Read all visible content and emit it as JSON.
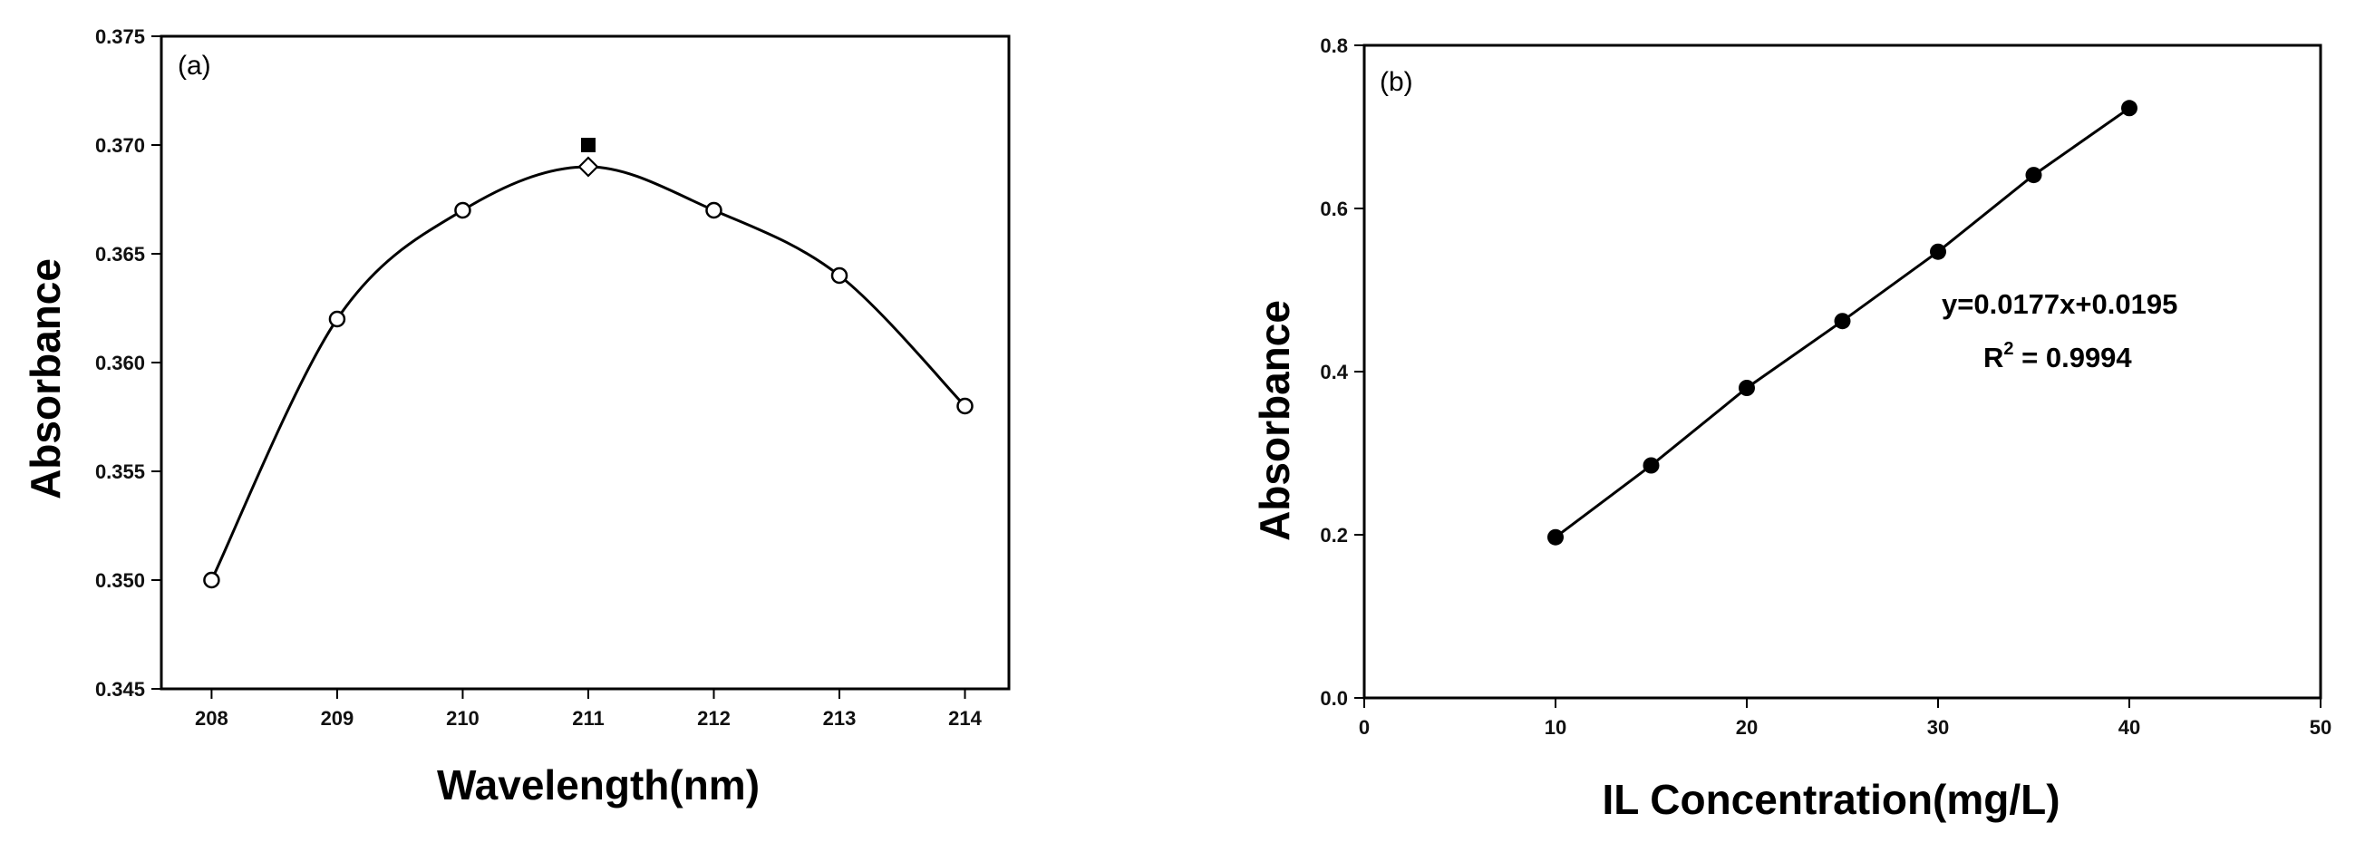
{
  "chart_data": [
    {
      "panel": "(a)",
      "type": "scatter",
      "xlabel": "Wavelength(nm)",
      "ylabel": "Absorbance",
      "xlim": [
        207.6,
        214.35
      ],
      "ylim": [
        0.345,
        0.375
      ],
      "xticks": [
        208,
        209,
        210,
        211,
        212,
        213,
        214
      ],
      "yticks": [
        0.345,
        0.35,
        0.355,
        0.36,
        0.365,
        0.37,
        0.375
      ],
      "ytick_labels": [
        "0.345",
        "0.350",
        "0.355",
        "0.360",
        "0.365",
        "0.370",
        "0.375"
      ],
      "series": [
        {
          "marker": "open-circle",
          "x": [
            208,
            209,
            210,
            212,
            213,
            214
          ],
          "y": [
            0.35,
            0.362,
            0.367,
            0.367,
            0.364,
            0.358
          ]
        },
        {
          "marker": "open-diamond",
          "x": [
            211
          ],
          "y": [
            0.369
          ]
        },
        {
          "marker": "filled-square",
          "x": [
            211
          ],
          "y": [
            0.37
          ]
        }
      ],
      "fit_curve": "smooth",
      "grid": false
    },
    {
      "panel": "(b)",
      "type": "line",
      "xlabel": "IL Concentration(mg/L)",
      "ylabel": "Absorbance",
      "xlim": [
        0,
        50
      ],
      "ylim": [
        0.0,
        0.8
      ],
      "xticks": [
        0,
        10,
        20,
        30,
        40,
        50
      ],
      "yticks": [
        0.0,
        0.2,
        0.4,
        0.6,
        0.8
      ],
      "ytick_labels": [
        "0.0",
        "0.2",
        "0.4",
        "0.6",
        "0.8"
      ],
      "series": [
        {
          "marker": "filled-circle",
          "x": [
            10,
            15,
            20,
            25,
            30,
            35,
            40
          ],
          "y": [
            0.197,
            0.285,
            0.38,
            0.462,
            0.547,
            0.641,
            0.723
          ]
        }
      ],
      "equation": "y=0.0177x+0.0195",
      "r2_prefix": "R",
      "r2_sup": "2",
      "r2_value": " = 0.9994",
      "grid": false
    }
  ]
}
